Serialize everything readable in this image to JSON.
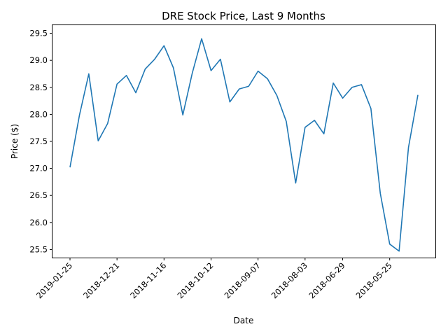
{
  "chart_data": {
    "type": "line",
    "title": "DRE Stock Price, Last 9 Months",
    "xlabel": "Date",
    "ylabel": "Price ($)",
    "line_color": "#1f77b4",
    "grid": false,
    "legend": "none",
    "ylim": [
      25.35,
      29.65
    ],
    "y_ticks": [
      "25.5",
      "26.0",
      "26.5",
      "27.0",
      "27.5",
      "28.0",
      "28.5",
      "29.0",
      "29.5"
    ],
    "x_tick_labels": [
      "2019-01-25",
      "2018-12-21",
      "2018-11-16",
      "2018-10-12",
      "2018-09-07",
      "2018-08-03",
      "2018-06-29",
      "2018-05-25"
    ],
    "x": [
      "2019-01-25",
      "2019-01-18",
      "2019-01-11",
      "2019-01-04",
      "2018-12-28",
      "2018-12-21",
      "2018-12-14",
      "2018-12-07",
      "2018-11-30",
      "2018-11-23",
      "2018-11-16",
      "2018-11-09",
      "2018-11-02",
      "2018-10-26",
      "2018-10-19",
      "2018-10-12",
      "2018-10-05",
      "2018-09-28",
      "2018-09-21",
      "2018-09-14",
      "2018-09-07",
      "2018-08-31",
      "2018-08-24",
      "2018-08-17",
      "2018-08-10",
      "2018-08-03",
      "2018-07-27",
      "2018-07-20",
      "2018-07-13",
      "2018-06-29",
      "2018-06-22",
      "2018-06-15",
      "2018-06-08",
      "2018-06-01",
      "2018-05-25",
      "2018-05-18",
      "2018-05-11",
      "2018-05-04"
    ],
    "y": [
      27.02,
      27.98,
      28.75,
      27.51,
      27.83,
      28.56,
      28.72,
      28.4,
      28.84,
      29.02,
      29.27,
      28.86,
      27.99,
      28.76,
      29.4,
      28.81,
      29.02,
      28.23,
      28.47,
      28.52,
      28.8,
      28.66,
      28.35,
      27.87,
      26.73,
      27.76,
      27.89,
      27.64,
      28.58,
      28.3,
      28.5,
      28.55,
      28.11,
      26.54,
      25.6,
      25.47,
      27.39,
      28.36
    ]
  }
}
